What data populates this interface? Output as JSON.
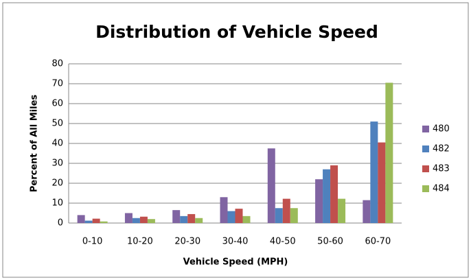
{
  "chart_data": {
    "type": "bar",
    "title": "Distribution of Vehicle Speed",
    "x_label": "Vehicle Speed (MPH)",
    "y_label": "Percent of All Miles",
    "categories": [
      "0-10",
      "10-20",
      "20-30",
      "30-40",
      "40-50",
      "50-60",
      "60-70"
    ],
    "series": [
      {
        "name": "480",
        "color": "#8064a2",
        "values": [
          4,
          5,
          6.5,
          13,
          37.5,
          22,
          11.5
        ]
      },
      {
        "name": "482",
        "color": "#4f81bd",
        "values": [
          1.2,
          2.5,
          3.5,
          6,
          7.5,
          27,
          51
        ]
      },
      {
        "name": "483",
        "color": "#c0504d",
        "values": [
          2.2,
          3.2,
          4.5,
          7.2,
          12.2,
          29,
          40.5
        ]
      },
      {
        "name": "484",
        "color": "#9bbb59",
        "values": [
          0.8,
          2,
          2.5,
          3.5,
          7.5,
          12.2,
          70.5
        ]
      }
    ],
    "ylim": [
      0,
      80
    ],
    "yticks": [
      0,
      10,
      20,
      30,
      40,
      50,
      60,
      70,
      80
    ],
    "grid": true,
    "legend": "right"
  }
}
